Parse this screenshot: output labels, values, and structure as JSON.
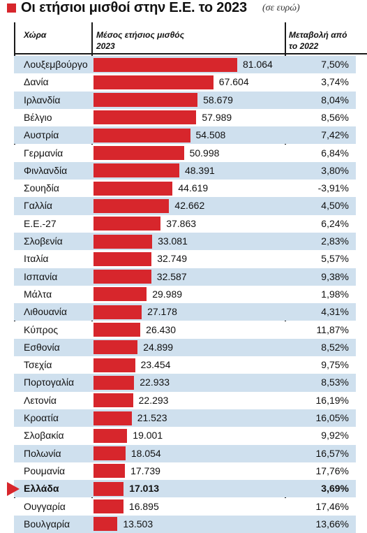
{
  "title": "Οι ετήσιοι μισθοί στην Ε.Ε. το 2023",
  "unit": "(σε ευρώ)",
  "headers": {
    "country": "Χώρα",
    "salary": "Μέσος ετήσιος μισθός 2023",
    "change": "Μεταβολή από το 2022"
  },
  "colors": {
    "bar": "#d7262c",
    "row_stripe": "#cfe0ee",
    "highlight_marker": "#d7262c"
  },
  "highlight": "Ελλάδα",
  "chart_data": {
    "type": "bar",
    "orientation": "horizontal",
    "categories": [
      "Λουξεμβούργο",
      "Δανία",
      "Ιρλανδία",
      "Βέλγιο",
      "Αυστρία",
      "Γερμανία",
      "Φινλανδία",
      "Σουηδία",
      "Γαλλία",
      "Ε.Ε.-27",
      "Σλοβενία",
      "Ιταλία",
      "Ισπανία",
      "Μάλτα",
      "Λιθουανία",
      "Κύπρος",
      "Εσθονία",
      "Τσεχία",
      "Πορτογαλία",
      "Λετονία",
      "Κροατία",
      "Σλοβακία",
      "Πολωνία",
      "Ρουμανία",
      "Ελλάδα",
      "Ουγγαρία",
      "Βουλγαρία"
    ],
    "values": [
      81064,
      67604,
      58679,
      57989,
      54508,
      50998,
      48391,
      44619,
      42662,
      37863,
      33081,
      32749,
      32587,
      29989,
      27178,
      26430,
      24899,
      23454,
      22933,
      22293,
      21523,
      19001,
      18054,
      17739,
      17013,
      16895,
      13503
    ],
    "value_labels": [
      "81.064",
      "67.604",
      "58.679",
      "57.989",
      "54.508",
      "50.998",
      "48.391",
      "44.619",
      "42.662",
      "37.863",
      "33.081",
      "32.749",
      "32.587",
      "29.989",
      "27.178",
      "26.430",
      "24.899",
      "23.454",
      "22.933",
      "22.293",
      "21.523",
      "19.001",
      "18.054",
      "17.739",
      "17.013",
      "16.895",
      "13.503"
    ],
    "change_labels": [
      "7,50%",
      "3,74%",
      "8,04%",
      "8,56%",
      "7,42%",
      "6,84%",
      "3,80%",
      "-3,91%",
      "4,50%",
      "6,24%",
      "2,83%",
      "5,57%",
      "9,38%",
      "1,98%",
      "4,31%",
      "11,87%",
      "8,52%",
      "9,75%",
      "8,53%",
      "16,19%",
      "16,05%",
      "9,92%",
      "16,57%",
      "17,76%",
      "3,69%",
      "17,46%",
      "13,66%"
    ]
  }
}
